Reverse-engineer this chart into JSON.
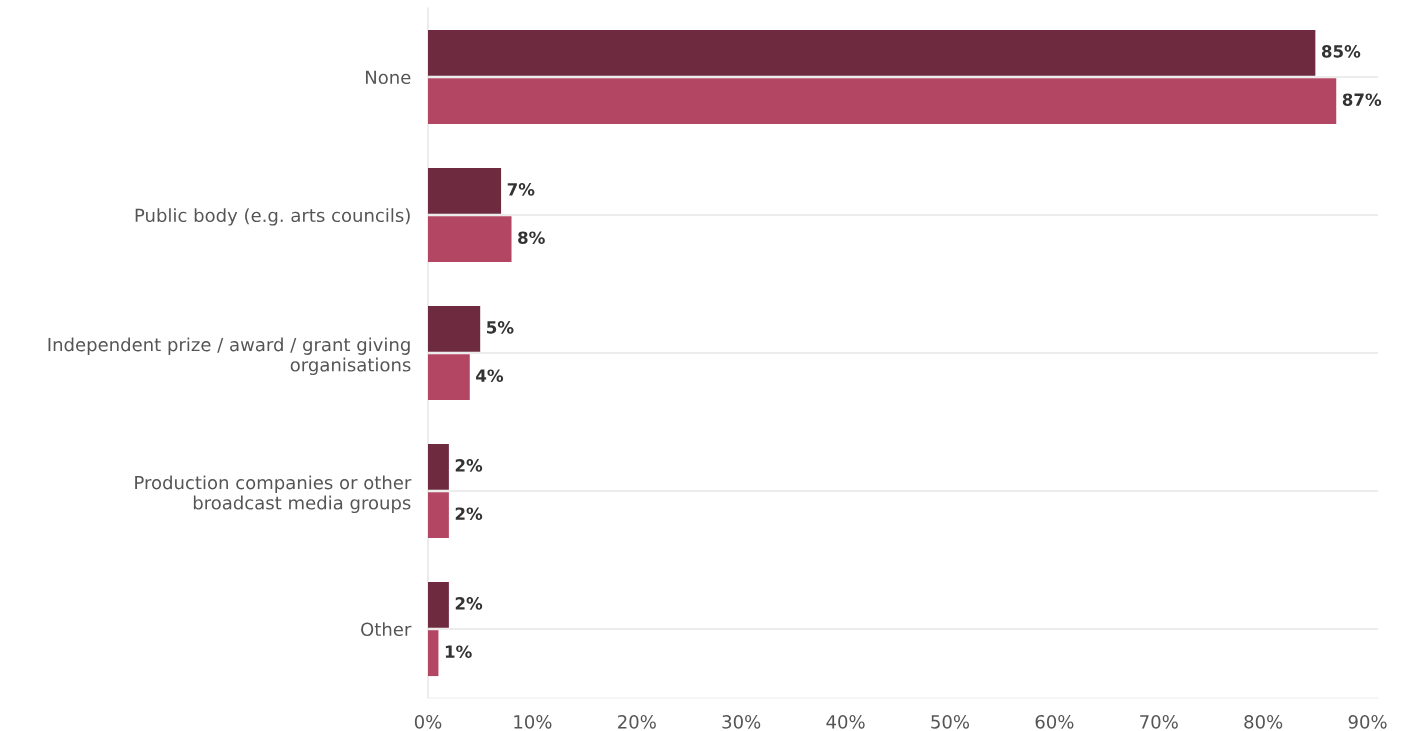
{
  "chart_data": {
    "type": "bar",
    "orientation": "horizontal",
    "categories": [
      "None",
      "Public body (e.g. arts councils)",
      "Independent prize / award / grant giving\norganisations",
      "Production companies or other\nbroadcast media groups",
      "Other"
    ],
    "series": [
      {
        "color": "#6e2a3e",
        "values": [
          85,
          7,
          5,
          2,
          2
        ],
        "value_labels": [
          "85%",
          "7%",
          "5%",
          "2%",
          "2%"
        ]
      },
      {
        "color": "#b34763",
        "values": [
          87,
          8,
          4,
          2,
          1
        ],
        "value_labels": [
          "87%",
          "8%",
          "4%",
          "2%",
          "1%"
        ]
      }
    ],
    "xlim": [
      0,
      91
    ],
    "xticks": [
      {
        "value": 0,
        "label": "0%"
      },
      {
        "value": 10,
        "label": "10%"
      },
      {
        "value": 20,
        "label": "20%"
      },
      {
        "value": 30,
        "label": "30%"
      },
      {
        "value": 40,
        "label": "40%"
      },
      {
        "value": 50,
        "label": "50%"
      },
      {
        "value": 60,
        "label": "60%"
      },
      {
        "value": 70,
        "label": "70%"
      },
      {
        "value": 80,
        "label": "80%"
      },
      {
        "value": 90,
        "label": "90%"
      }
    ],
    "grid": "y",
    "legend": false
  }
}
